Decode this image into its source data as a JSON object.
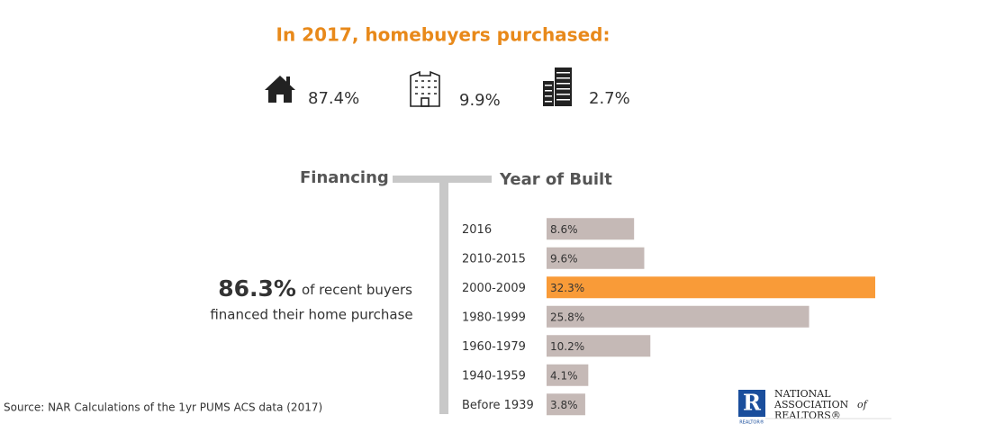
{
  "purchases": {
    "title": "In 2017, homebuyers purchased:",
    "items": [
      "87.4%",
      "9.9%",
      "2.7%"
    ]
  },
  "financing": {
    "heading": "Financing",
    "share": "86.3%",
    "line1": "of recent buyers",
    "line2": "financed their home purchase"
  },
  "chart_data": {
    "type": "bar",
    "title": "Year of Built",
    "categories": [
      "2016",
      "2010-2015",
      "2000-2009",
      "1980-1999",
      "1960-1979",
      "1940-1959",
      "Before 1939"
    ],
    "values": [
      8.6,
      9.6,
      32.3,
      25.8,
      10.2,
      4.1,
      3.8
    ],
    "value_labels": [
      "8.6%",
      "9.6%",
      "32.3%",
      "25.8%",
      "10.2%",
      "4.1%",
      "3.8%"
    ],
    "colors": [
      "#c5b9b6",
      "#c5b9b6",
      "#f99b38",
      "#c5b9b6",
      "#c5b9b6",
      "#c5b9b6",
      "#c5b9b6"
    ]
  },
  "source": "Source: NAR Calculations of the 1yr PUMS ACS data (2017)",
  "logo": {
    "line1": "NATIONAL",
    "line2": "ASSOCIATION",
    "of": "of",
    "line3": "REALTORS®",
    "mark": "REALTOR®"
  }
}
